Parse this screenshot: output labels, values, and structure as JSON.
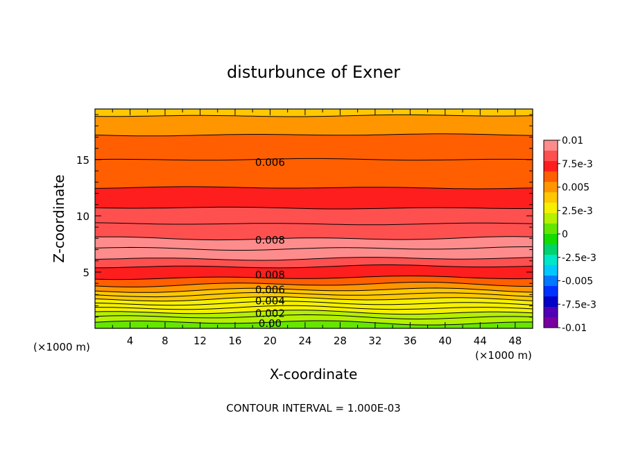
{
  "chart_data": {
    "type": "contour",
    "title": "disturbunce of Exner",
    "xlabel": "X-coordinate",
    "ylabel": "Z-coordinate",
    "x_unit_left": "(×1000 m)",
    "x_unit_right": "(×1000 m)",
    "xlim": [
      0,
      50
    ],
    "ylim": [
      0,
      19.5
    ],
    "x_ticks": [
      4,
      8,
      12,
      16,
      20,
      24,
      28,
      32,
      36,
      40,
      44,
      48
    ],
    "y_ticks": [
      5,
      10,
      15
    ],
    "footer": "CONTOUR INTERVAL = 1.000E-03",
    "contour_interval": 0.001,
    "z_band_boundaries": [
      0.0,
      0.5,
      1.0,
      1.4,
      1.8,
      2.2,
      2.6,
      3.0,
      3.4,
      3.9,
      4.5,
      5.5,
      6.2,
      7.1,
      8.0,
      9.3,
      10.7,
      12.5,
      15.0,
      17.2,
      18.9,
      19.5
    ],
    "band_values": [
      0.0005,
      0.0012,
      0.0018,
      0.0023,
      0.0028,
      0.0033,
      0.0038,
      0.0043,
      0.0048,
      0.0058,
      0.0072,
      0.0088,
      0.0097,
      0.0092,
      0.0086,
      0.0079,
      0.0073,
      0.0066,
      0.0058,
      0.0051,
      0.0044
    ],
    "contour_labels": [
      {
        "text": "0.006",
        "x": 20,
        "z": 14.8
      },
      {
        "text": "0.008",
        "x": 20,
        "z": 7.9
      },
      {
        "text": "0.008",
        "x": 20,
        "z": 4.8
      },
      {
        "text": "0.006",
        "x": 20,
        "z": 3.5
      },
      {
        "text": "0.004",
        "x": 20,
        "z": 2.5
      },
      {
        "text": "0.002",
        "x": 20,
        "z": 1.4
      },
      {
        "text": "0.00",
        "x": 20,
        "z": 0.5
      }
    ],
    "colorbar": {
      "vmin": -0.01,
      "vmax": 0.01,
      "labels": [
        "0.01",
        "7.5e-3",
        "0.005",
        "2.5e-3",
        "0",
        "-2.5e-3",
        "-0.005",
        "-7.5e-3",
        "-0.01"
      ],
      "colors": [
        "#ff8c8c",
        "#ff5050",
        "#ff1e1e",
        "#ff5f00",
        "#ff9600",
        "#ffc800",
        "#f5f000",
        "#b4f000",
        "#64e600",
        "#14dc00",
        "#00d26e",
        "#00e6c8",
        "#00c8ff",
        "#0078ff",
        "#0032ff",
        "#0000c8",
        "#5000b4",
        "#7800a0"
      ]
    }
  }
}
